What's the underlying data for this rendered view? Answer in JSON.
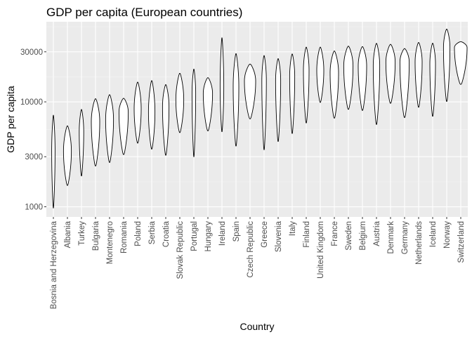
{
  "chart_data": {
    "type": "violin",
    "title": "GDP per capita (European countries)",
    "xlabel": "Country",
    "ylabel": "GDP per capita",
    "y_scale": "log10",
    "ylim": [
      800,
      58000
    ],
    "y_ticks": [
      1000,
      3000,
      10000,
      30000
    ],
    "y_tick_labels": [
      "1000",
      "3000",
      "10000",
      "30000"
    ],
    "grid": true,
    "legend": "none",
    "categories": [
      "Bosnia and Herzegovina",
      "Albania",
      "Turkey",
      "Bulgaria",
      "Montenegro",
      "Romania",
      "Poland",
      "Serbia",
      "Croatia",
      "Slovak Republic",
      "Portugal",
      "Hungary",
      "Ireland",
      "Spain",
      "Czech Republic",
      "Greece",
      "Slovenia",
      "Italy",
      "Finland",
      "United Kingdom",
      "France",
      "Sweden",
      "Belgium",
      "Austria",
      "Denmark",
      "Germany",
      "Netherlands",
      "Iceland",
      "Norway",
      "Switzerland"
    ],
    "series": [
      {
        "min": 974,
        "max": 7450,
        "peak": 3400,
        "half_width": 0.12
      },
      {
        "min": 1600,
        "max": 5900,
        "peak": 3400,
        "half_width": 0.28
      },
      {
        "min": 1970,
        "max": 8450,
        "peak": 5200,
        "half_width": 0.16
      },
      {
        "min": 2450,
        "max": 10700,
        "peak": 6500,
        "half_width": 0.3
      },
      {
        "min": 2650,
        "max": 11700,
        "peak": 6800,
        "half_width": 0.28
      },
      {
        "min": 3150,
        "max": 10800,
        "peak": 8000,
        "half_width": 0.33
      },
      {
        "min": 4050,
        "max": 15400,
        "peak": 8600,
        "half_width": 0.25
      },
      {
        "min": 3550,
        "max": 15900,
        "peak": 8000,
        "half_width": 0.23
      },
      {
        "min": 3100,
        "max": 14600,
        "peak": 9000,
        "half_width": 0.23
      },
      {
        "min": 5100,
        "max": 18700,
        "peak": 10500,
        "half_width": 0.28
      },
      {
        "min": 3000,
        "max": 20500,
        "peak": 12000,
        "half_width": 0.13
      },
      {
        "min": 5300,
        "max": 17000,
        "peak": 12000,
        "half_width": 0.33
      },
      {
        "min": 5200,
        "max": 40700,
        "peak": 14000,
        "half_width": 0.13
      },
      {
        "min": 3800,
        "max": 28800,
        "peak": 14000,
        "half_width": 0.2
      },
      {
        "min": 6900,
        "max": 22900,
        "peak": 15800,
        "half_width": 0.4
      },
      {
        "min": 3500,
        "max": 27600,
        "peak": 16000,
        "half_width": 0.16
      },
      {
        "min": 4200,
        "max": 25800,
        "peak": 16000,
        "half_width": 0.18
      },
      {
        "min": 5000,
        "max": 28600,
        "peak": 17500,
        "half_width": 0.18
      },
      {
        "min": 6300,
        "max": 33200,
        "peak": 20000,
        "half_width": 0.2
      },
      {
        "min": 9900,
        "max": 33200,
        "peak": 20000,
        "half_width": 0.25
      },
      {
        "min": 7000,
        "max": 30500,
        "peak": 19000,
        "half_width": 0.3
      },
      {
        "min": 8500,
        "max": 33900,
        "peak": 22000,
        "half_width": 0.33
      },
      {
        "min": 8300,
        "max": 33600,
        "peak": 22000,
        "half_width": 0.3
      },
      {
        "min": 6100,
        "max": 36100,
        "peak": 22000,
        "half_width": 0.23
      },
      {
        "min": 9700,
        "max": 35300,
        "peak": 24000,
        "half_width": 0.33
      },
      {
        "min": 7100,
        "max": 32200,
        "peak": 24000,
        "half_width": 0.33
      },
      {
        "min": 8900,
        "max": 36800,
        "peak": 24000,
        "half_width": 0.25
      },
      {
        "min": 7300,
        "max": 36200,
        "peak": 23000,
        "half_width": 0.2
      },
      {
        "min": 10100,
        "max": 49400,
        "peak": 33000,
        "half_width": 0.23
      },
      {
        "min": 14700,
        "max": 37500,
        "peak": 33000,
        "half_width": 0.45
      }
    ]
  }
}
